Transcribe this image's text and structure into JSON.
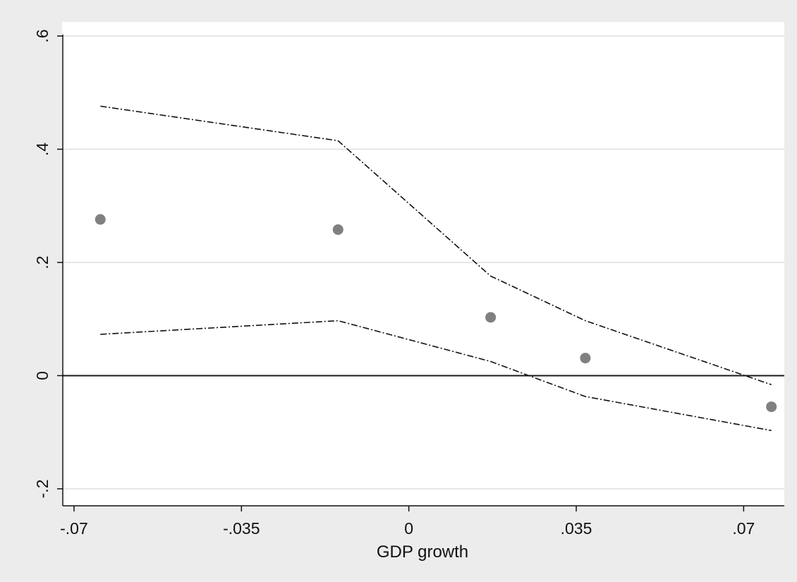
{
  "chart_data": {
    "type": "scatter",
    "title": "",
    "xlabel": "GDP growth",
    "ylabel": "",
    "xlim": [
      -0.0725,
      0.0785
    ],
    "ylim": [
      -0.23,
      0.625
    ],
    "x_ticks": [
      {
        "value": -0.07,
        "label": "-.07"
      },
      {
        "value": -0.035,
        "label": "-.035"
      },
      {
        "value": 0,
        "label": "0"
      },
      {
        "value": 0.035,
        "label": ".035"
      },
      {
        "value": 0.07,
        "label": ".07"
      }
    ],
    "y_ticks": [
      {
        "value": -0.2,
        "label": "-.2"
      },
      {
        "value": 0,
        "label": "0"
      },
      {
        "value": 0.2,
        "label": ".2"
      },
      {
        "value": 0.4,
        "label": ".4"
      },
      {
        "value": 0.6,
        "label": ".6"
      }
    ],
    "grid": true,
    "reference_line_y": 0,
    "colors": {
      "points": "#808080",
      "ci_lines": "#111111",
      "zero_line": "#1a1a1a",
      "grid": "#e6e6e6",
      "plot_background": "#ffffff",
      "outer_background": "#ececec"
    },
    "series": [
      {
        "kind": "points",
        "x": [
          -0.0645,
          -0.0148,
          0.0171,
          0.0369,
          0.0758
        ],
        "y": [
          0.276,
          0.258,
          0.103,
          0.031,
          -0.055
        ]
      },
      {
        "kind": "upper_ci",
        "x": [
          -0.0645,
          -0.0148,
          0.0171,
          0.0369,
          0.0758
        ],
        "y": [
          0.476,
          0.415,
          0.176,
          0.097,
          -0.016
        ]
      },
      {
        "kind": "lower_ci",
        "x": [
          -0.0645,
          -0.0148,
          0.0171,
          0.0369,
          0.0758
        ],
        "y": [
          0.073,
          0.097,
          0.025,
          -0.037,
          -0.097
        ]
      }
    ]
  }
}
